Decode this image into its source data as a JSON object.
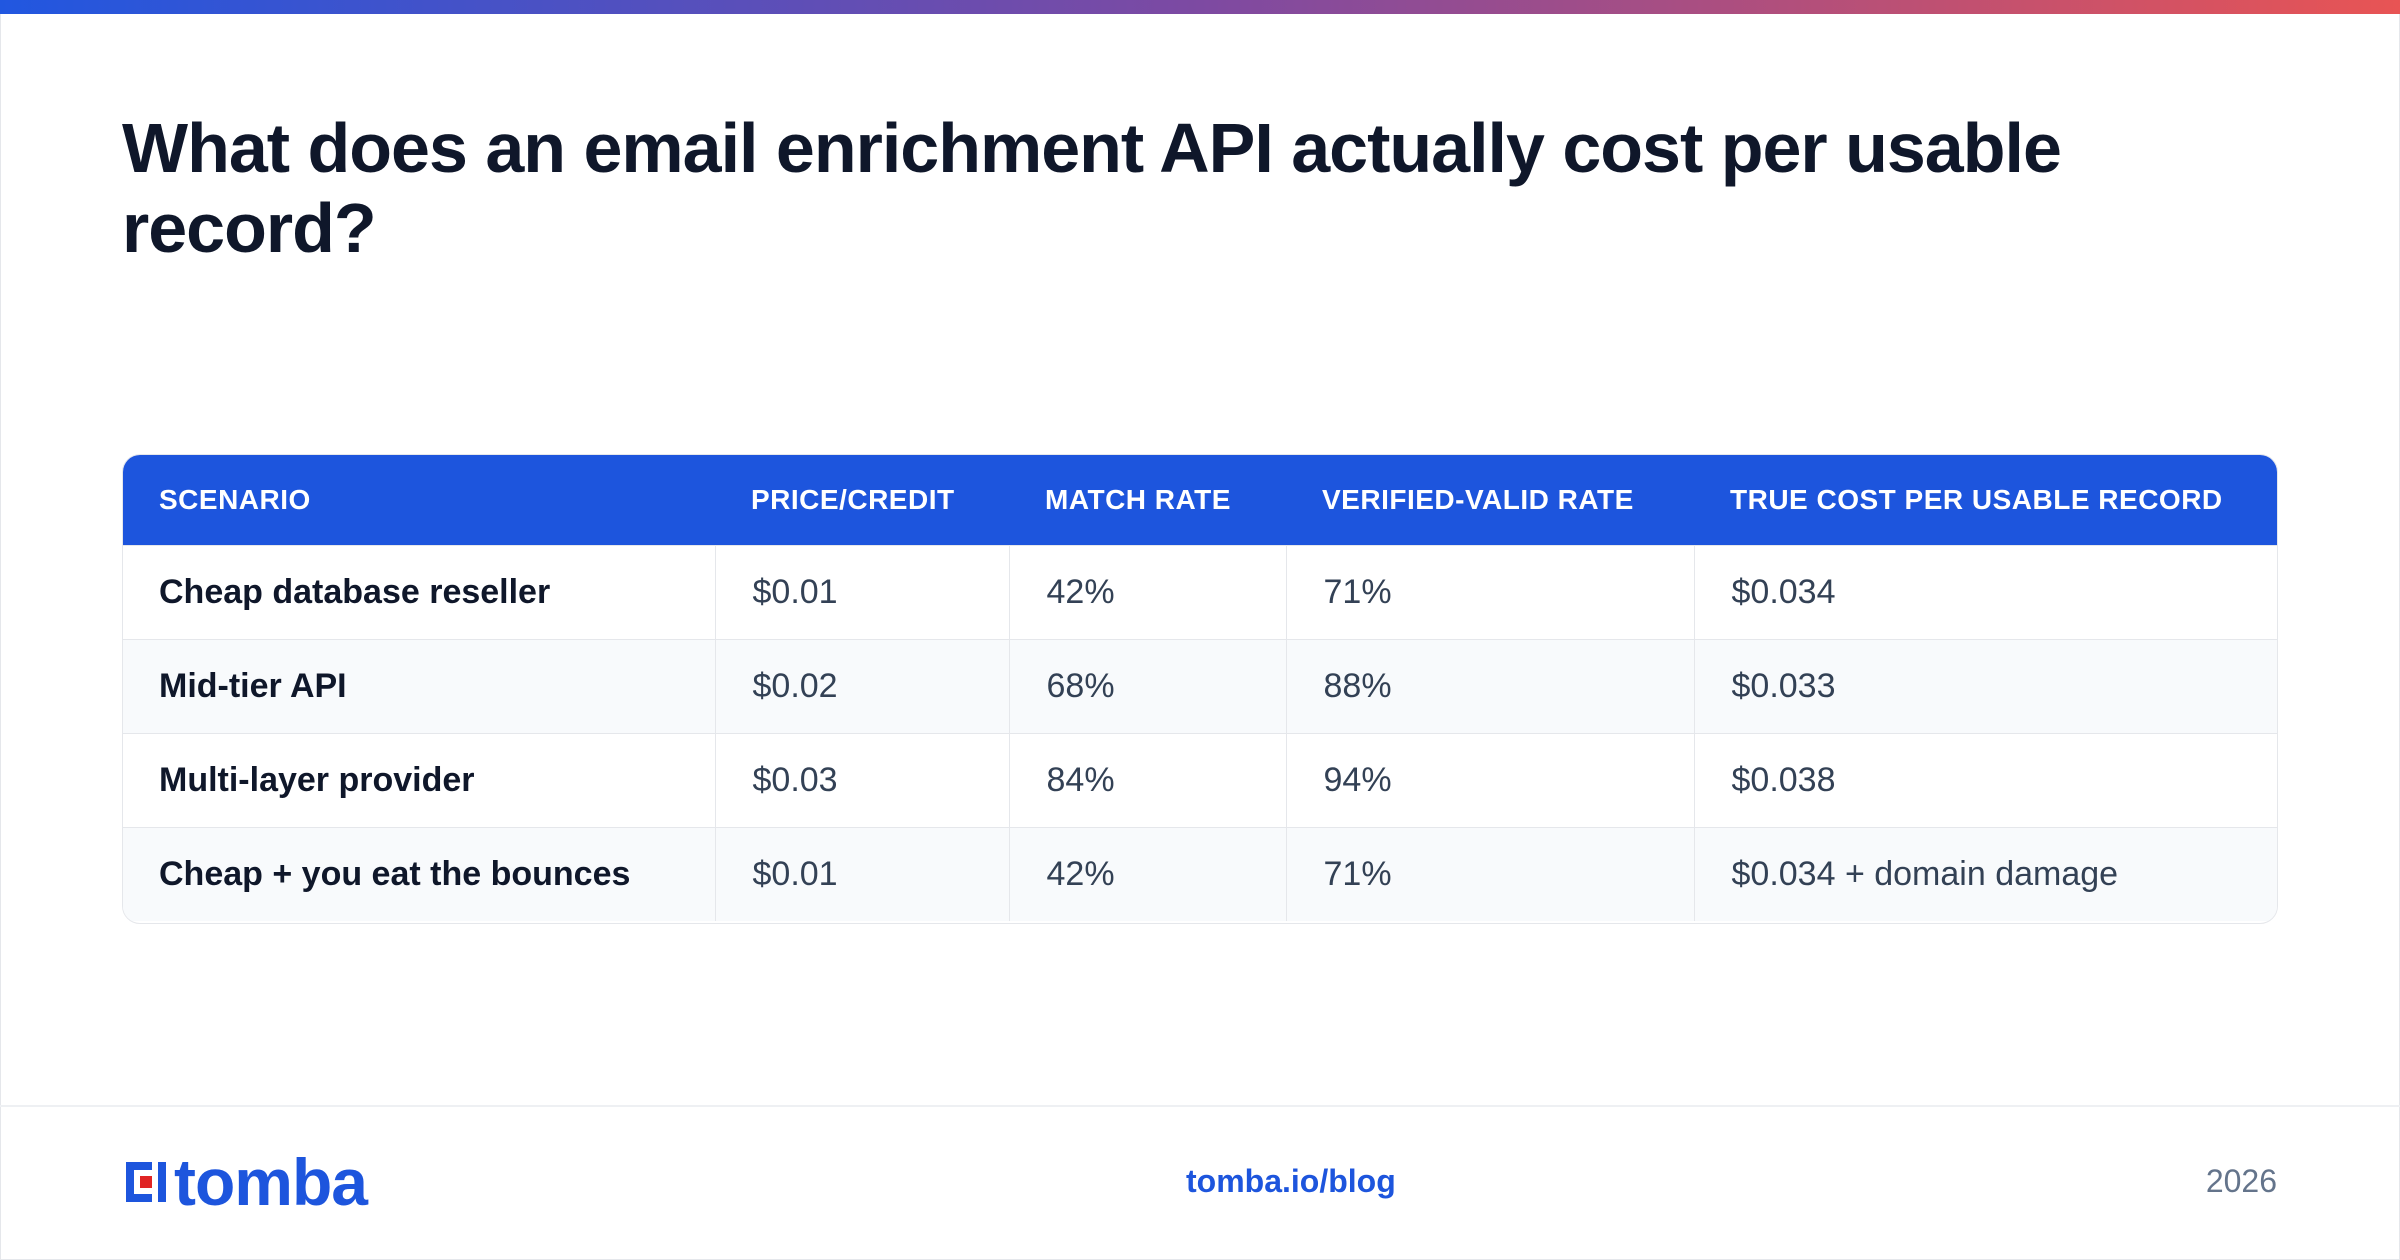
{
  "title": "What does an email enrichment API actually cost per usable record?",
  "colors": {
    "accent": "#1d55dd",
    "gradient_start": "#2157e0",
    "gradient_end": "#e85454",
    "logo_red": "#e02424"
  },
  "table": {
    "headers": [
      "SCENARIO",
      "PRICE/CREDIT",
      "MATCH RATE",
      "VERIFIED-VALID RATE",
      "TRUE COST PER USABLE RECORD"
    ],
    "rows": [
      [
        "Cheap database reseller",
        "$0.01",
        "42%",
        "71%",
        "$0.034"
      ],
      [
        "Mid-tier API",
        "$0.02",
        "68%",
        "88%",
        "$0.033"
      ],
      [
        "Multi-layer provider",
        "$0.03",
        "84%",
        "94%",
        "$0.038"
      ],
      [
        "Cheap + you eat the bounces",
        "$0.01",
        "42%",
        "71%",
        "$0.034 + domain damage"
      ]
    ]
  },
  "footer": {
    "logo_text": "tomba",
    "logo_icon": "tomba-logo-icon",
    "site": "tomba.io/blog",
    "year": "2026"
  }
}
